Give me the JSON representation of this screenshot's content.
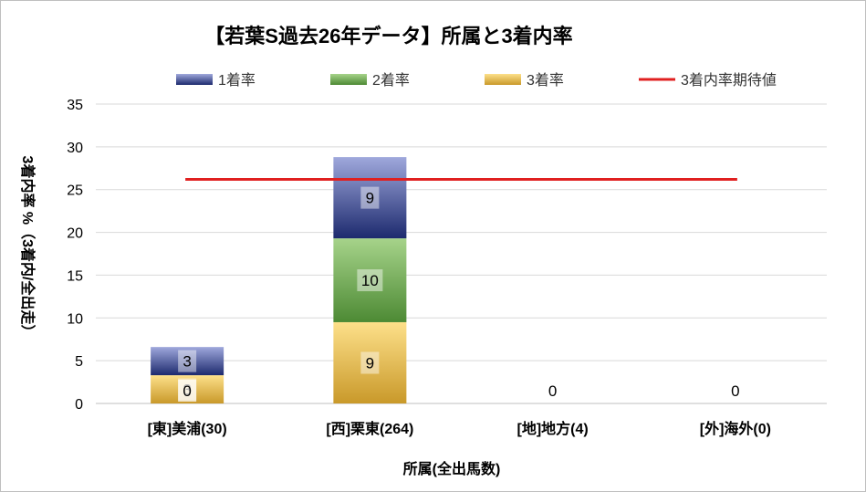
{
  "chart_data": {
    "type": "bar",
    "stacked": true,
    "title": "【若葉S過去26年データ】所属と3着内率",
    "xlabel": "所属(全出馬数)",
    "ylabel": "3着内率 %（3着内/全出走）",
    "ylim": [
      0,
      35
    ],
    "yticks": [
      "0",
      "5",
      "10",
      "15",
      "20",
      "25",
      "30",
      "35"
    ],
    "grid": true,
    "legend_position": "top",
    "categories": [
      "[東]美浦(30)",
      "[西]栗東(264)",
      "[地]地方(4)",
      "[外]海外(0)"
    ],
    "series": [
      {
        "name": "3着率",
        "values": [
          3.3,
          9.5,
          0,
          0
        ],
        "labels": [
          "3",
          "9",
          "0",
          "0"
        ],
        "colors": {
          "top": "#fde08a",
          "bottom": "#c9992a"
        }
      },
      {
        "name": "2着率",
        "values": [
          0,
          9.8,
          0,
          0
        ],
        "labels": [
          "0",
          "10",
          "",
          ""
        ],
        "colors": {
          "top": "#a6d38a",
          "bottom": "#4d8a34"
        }
      },
      {
        "name": "1着率",
        "values": [
          3.3,
          9.5,
          0,
          0
        ],
        "labels": [
          "3",
          "9",
          "",
          ""
        ],
        "colors": {
          "top": "#9fa8dc",
          "bottom": "#1d2a6e"
        }
      }
    ],
    "reference_line": {
      "name": "3着内率期待値",
      "value": 26.2,
      "color": "#e02020"
    },
    "legend_order": [
      "1着率",
      "2着率",
      "3着率",
      "3着内率期待値"
    ]
  }
}
